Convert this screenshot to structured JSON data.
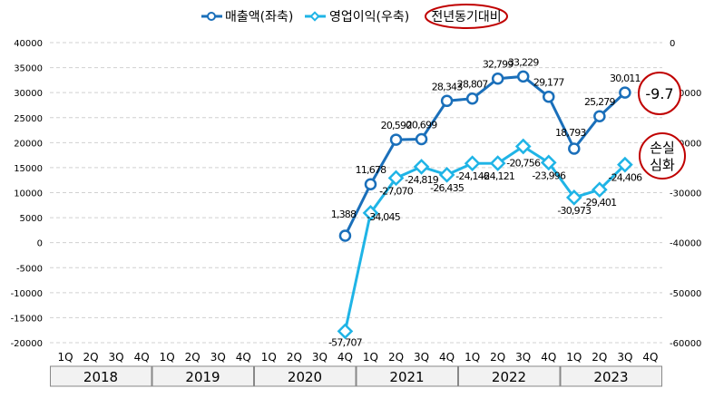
{
  "chart_data": {
    "type": "line",
    "title": "",
    "legend_position": "top",
    "legend": [
      {
        "name": "매출액(좌축)",
        "color": "#1a6fba",
        "marker": "circle"
      },
      {
        "name": "영업이익(우축)",
        "color": "#1fb4e6",
        "marker": "diamond"
      }
    ],
    "legend_note": "전년동기대비",
    "years": [
      "2018",
      "2019",
      "2020",
      "2021",
      "2022",
      "2023"
    ],
    "quarters": [
      "1Q",
      "2Q",
      "3Q",
      "4Q"
    ],
    "left_axis": {
      "ylim": [
        -20000,
        40000
      ],
      "step": 5000
    },
    "right_axis": {
      "ylim": [
        -60000,
        0
      ],
      "step": 10000
    },
    "grid": true,
    "series": [
      {
        "name": "매출액(좌축)",
        "axis": "left",
        "start_index": 11,
        "values": [
          1388,
          11678,
          20590,
          20699,
          28343,
          28807,
          32799,
          33229,
          29177,
          18793,
          25279,
          30011
        ],
        "labels": [
          "1,388",
          "11,678",
          "20,590",
          "20,699",
          "28,343",
          "28,807",
          "32,799",
          "33,229",
          "29,177",
          "18,793",
          "25,279",
          "30,011"
        ]
      },
      {
        "name": "영업이익(우축)",
        "axis": "right",
        "start_index": 11,
        "values": [
          -57707,
          -34045,
          -27070,
          -24819,
          -26435,
          -24146,
          -24121,
          -20756,
          -23996,
          -30973,
          -29401,
          -24406
        ],
        "labels": [
          "-57,707",
          "-34,045",
          "-27,070",
          "-24,819",
          "-26,435",
          "-24,146",
          "-24,121",
          "-20,756",
          "-23,996",
          "-30,973",
          "-29,401",
          "-24,406"
        ]
      }
    ],
    "annotations": {
      "revenue_yoy": "-9.7",
      "profit_note_line1": "손실",
      "profit_note_line2": "심화"
    }
  }
}
